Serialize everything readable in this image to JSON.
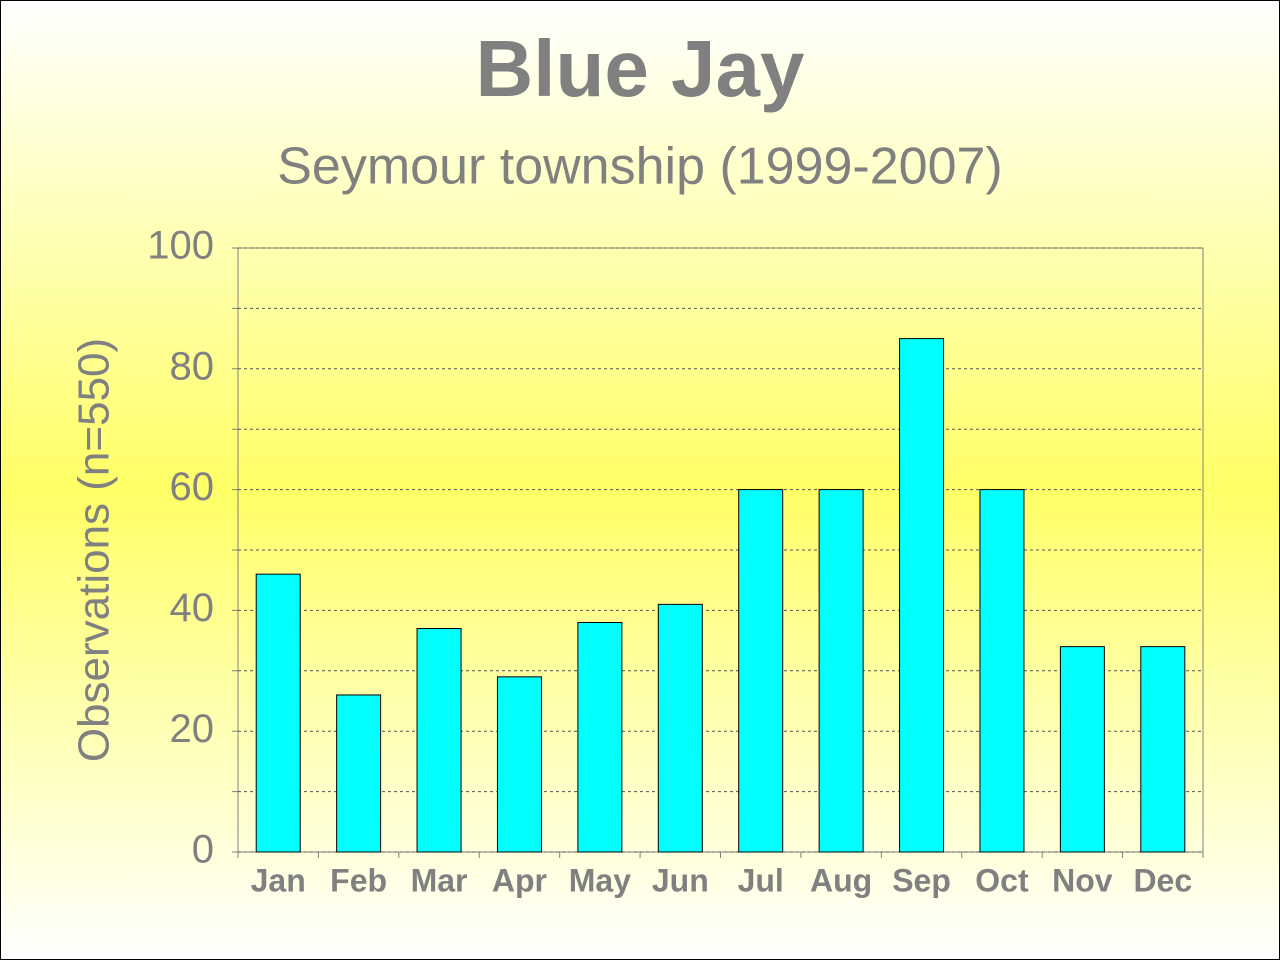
{
  "chart_data": {
    "type": "bar",
    "title": "Blue Jay",
    "subtitle": "Seymour township (1999-2007)",
    "y_label": "Observations (n=550)",
    "categories": [
      "Jan",
      "Feb",
      "Mar",
      "Apr",
      "May",
      "Jun",
      "Jul",
      "Aug",
      "Sep",
      "Oct",
      "Nov",
      "Dec"
    ],
    "values": [
      46,
      26,
      37,
      29,
      38,
      41,
      60,
      60,
      85,
      60,
      34,
      34
    ],
    "color": "#00ffff",
    "ylim": [
      0,
      100
    ],
    "yticks": [
      0,
      20,
      40,
      60,
      80,
      100
    ],
    "minor_yticks": [
      10,
      30,
      50,
      70,
      90
    ],
    "grid": true
  }
}
